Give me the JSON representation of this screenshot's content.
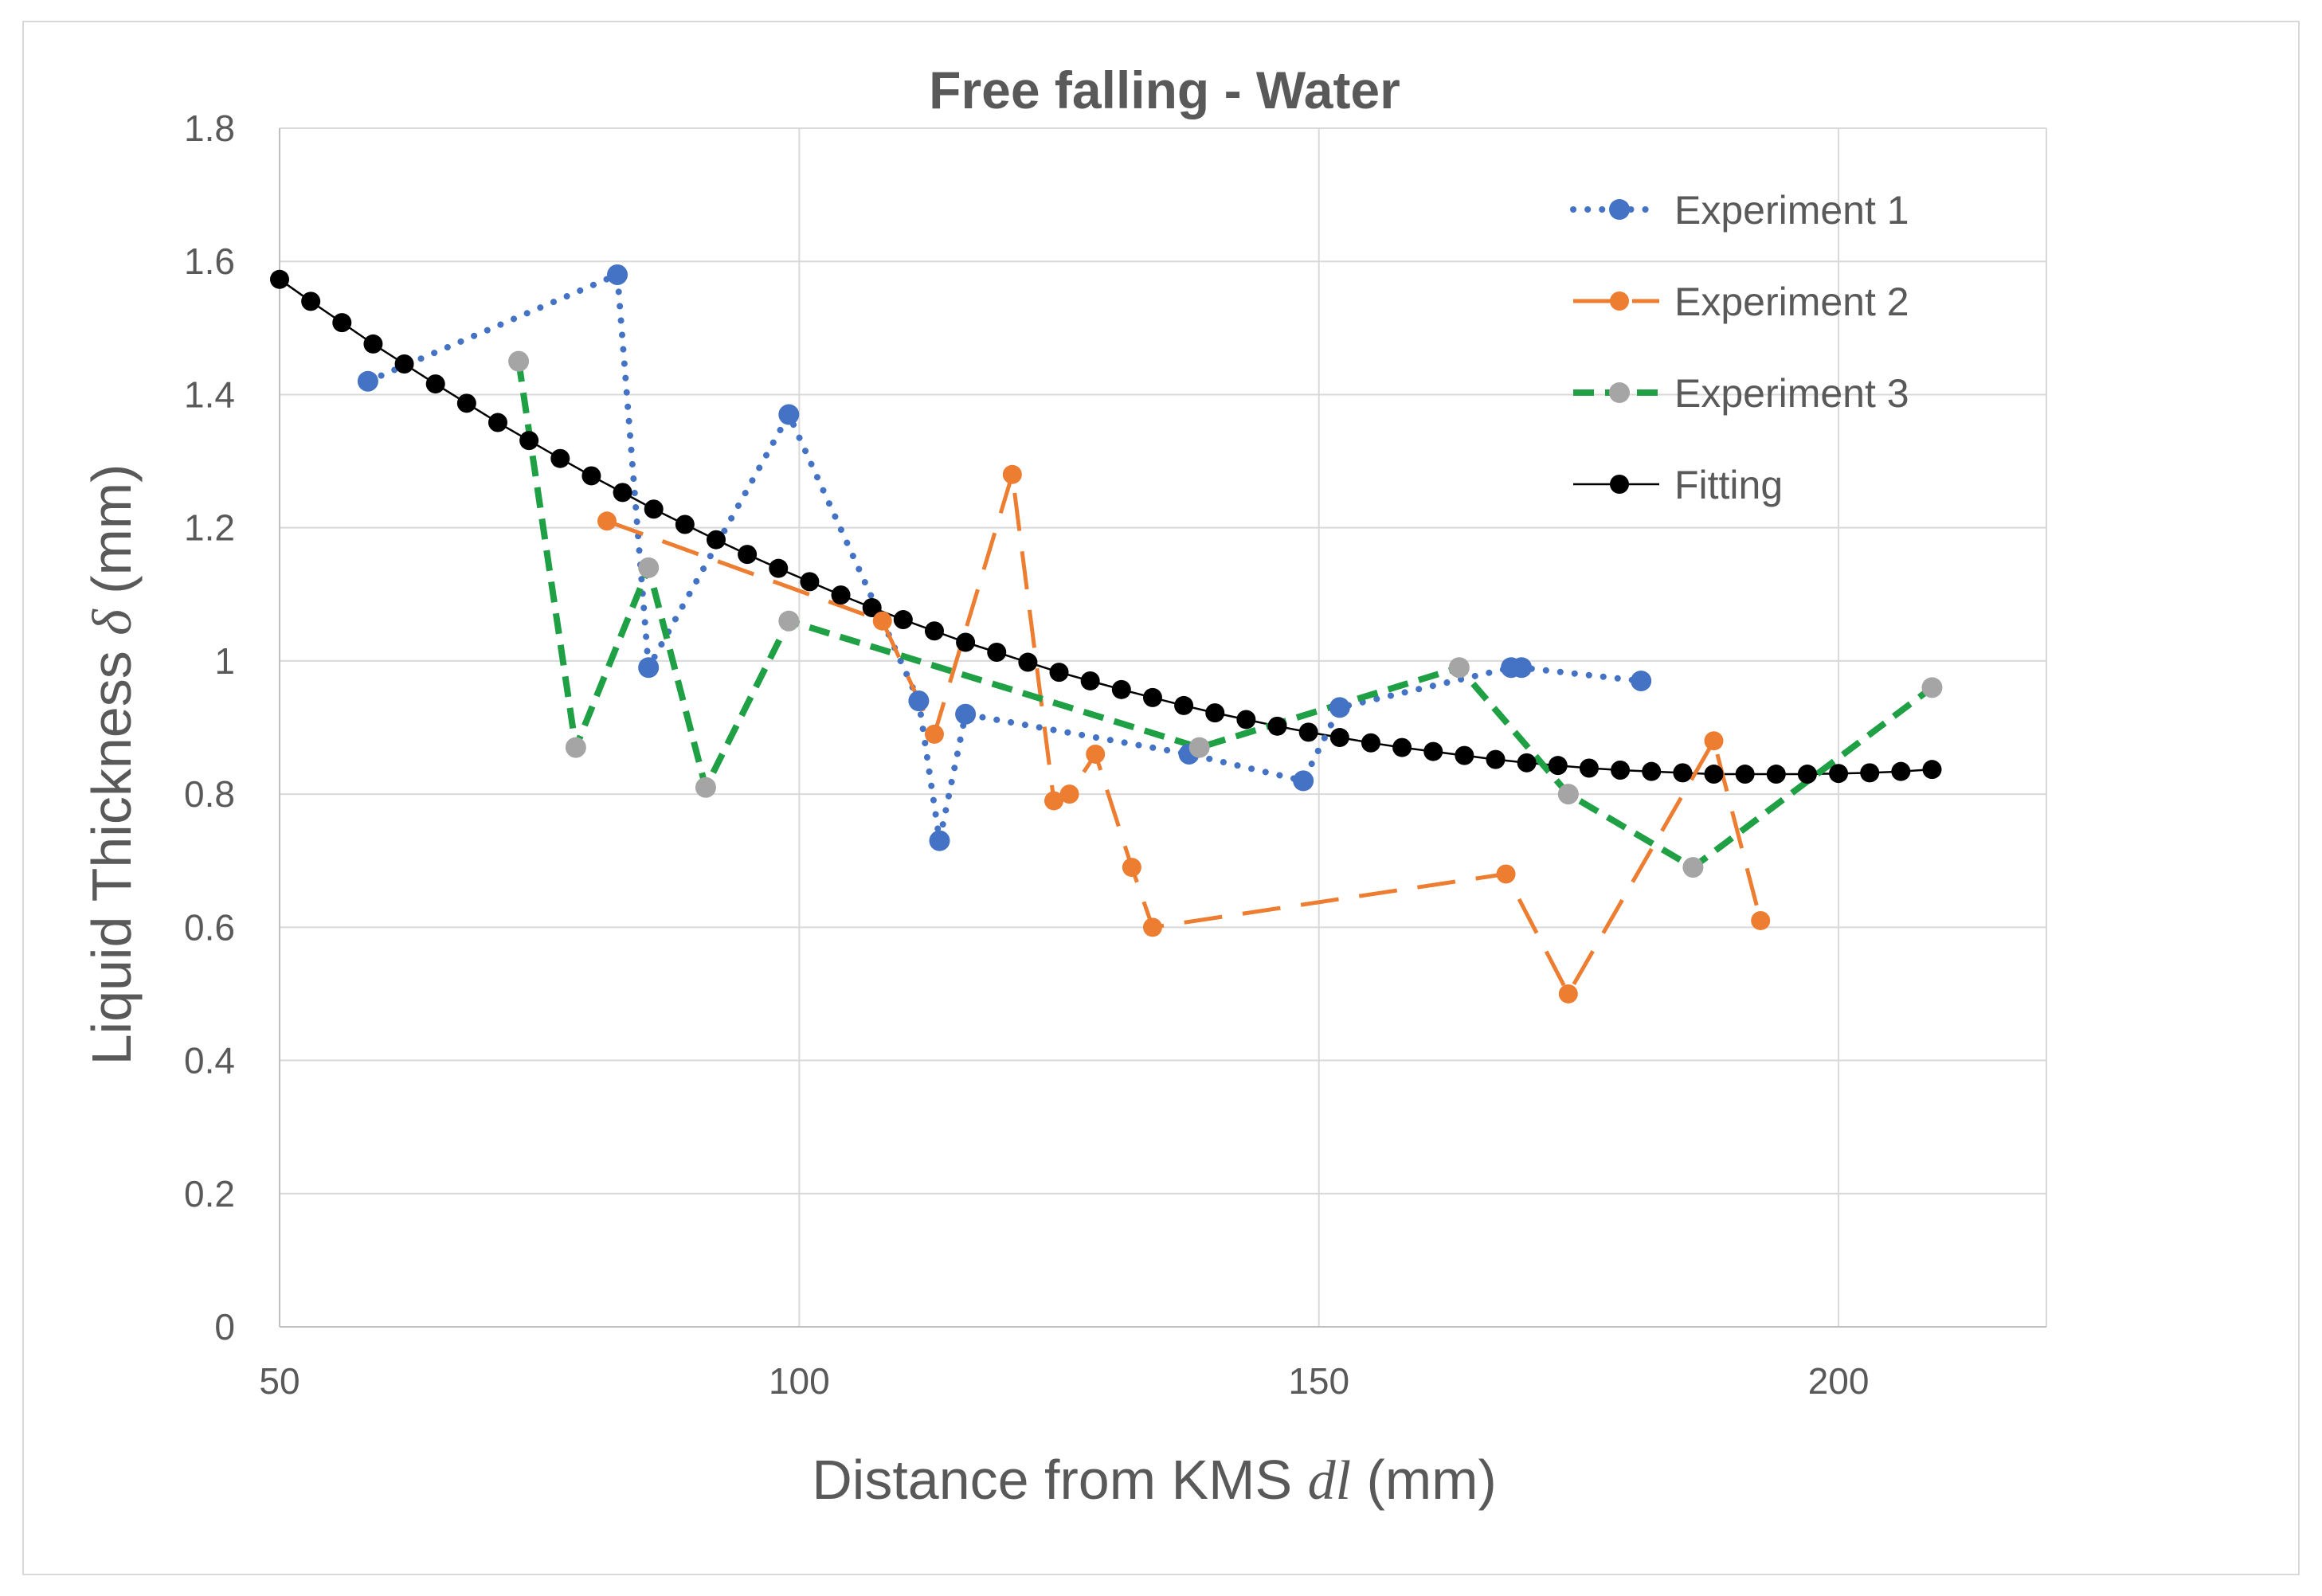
{
  "chart_data": {
    "type": "line",
    "title": "Free falling - Water",
    "xlabel": "Distance from KMS",
    "xlabel_symbol": "dl",
    "xlabel_unit": "(mm)",
    "ylabel": "Liquid Thickness",
    "ylabel_symbol": "δ",
    "ylabel_unit": "(mm)",
    "xlim": [
      50,
      220
    ],
    "ylim": [
      0,
      1.8
    ],
    "x_ticks": [
      "50",
      "100",
      "150",
      "200"
    ],
    "x_tick_values": [
      50,
      100,
      150,
      200
    ],
    "y_ticks": [
      "0",
      "0.2",
      "0.4",
      "0.6",
      "0.8",
      "1",
      "1.2",
      "1.4",
      "1.6",
      "1.8"
    ],
    "y_tick_values": [
      0,
      0.2,
      0.4,
      0.6,
      0.8,
      1.0,
      1.2,
      1.4,
      1.6,
      1.8
    ],
    "grid": true,
    "legend_position": "top-right",
    "series": [
      {
        "name": "Experiment 1",
        "line_color": "#4472c4",
        "marker_color": "#4472c4",
        "line_style": "dotted",
        "x": [
          58.5,
          82.5,
          85.5,
          99,
          111.5,
          113.5,
          116,
          137.5,
          148.5,
          152,
          168.5,
          169.5,
          181
        ],
        "y": [
          1.42,
          1.58,
          0.99,
          1.37,
          0.94,
          0.73,
          0.92,
          0.86,
          0.82,
          0.93,
          0.99,
          0.99,
          0.97
        ]
      },
      {
        "name": "Experiment 2",
        "line_color": "#ed7d31",
        "marker_color": "#ed7d31",
        "line_style": "dashed",
        "x": [
          81.5,
          108,
          113,
          120.5,
          124.5,
          126,
          128.5,
          132,
          134,
          168,
          174,
          188,
          192.5
        ],
        "y": [
          1.21,
          1.06,
          0.89,
          1.28,
          0.79,
          0.8,
          0.86,
          0.69,
          0.6,
          0.68,
          0.5,
          0.88,
          0.61
        ]
      },
      {
        "name": "Experiment 3",
        "line_color": "#1fa045",
        "marker_color": "#a5a5a5",
        "line_style": "dashed-bold",
        "x": [
          73,
          78.5,
          85.5,
          91,
          99,
          138.5,
          163.5,
          174,
          186,
          209
        ],
        "y": [
          1.45,
          0.87,
          1.14,
          0.81,
          1.06,
          0.87,
          0.99,
          0.8,
          0.69,
          0.96
        ]
      },
      {
        "name": "Fitting",
        "line_color": "#000000",
        "marker_color": "#000000",
        "line_style": "solid",
        "x": [
          50,
          53,
          56,
          59,
          62,
          65,
          68,
          71,
          74,
          77,
          80,
          83,
          86,
          89,
          92,
          95,
          98,
          101,
          104,
          107,
          110,
          113,
          116,
          119,
          122,
          125,
          128,
          131,
          134,
          137,
          140,
          143,
          146,
          149,
          152,
          155,
          158,
          161,
          164,
          167,
          170,
          173,
          176,
          179,
          182,
          185,
          188,
          191,
          194,
          197,
          200,
          203,
          206,
          209
        ],
        "y": [
          1.573,
          1.54,
          1.508,
          1.476,
          1.446,
          1.416,
          1.387,
          1.358,
          1.331,
          1.304,
          1.278,
          1.253,
          1.228,
          1.205,
          1.182,
          1.16,
          1.139,
          1.119,
          1.099,
          1.08,
          1.062,
          1.045,
          1.028,
          1.013,
          0.998,
          0.983,
          0.97,
          0.957,
          0.945,
          0.933,
          0.922,
          0.912,
          0.902,
          0.893,
          0.885,
          0.877,
          0.87,
          0.864,
          0.858,
          0.852,
          0.847,
          0.843,
          0.839,
          0.836,
          0.834,
          0.832,
          0.83,
          0.83,
          0.83,
          0.83,
          0.831,
          0.832,
          0.834,
          0.837
        ]
      }
    ]
  }
}
